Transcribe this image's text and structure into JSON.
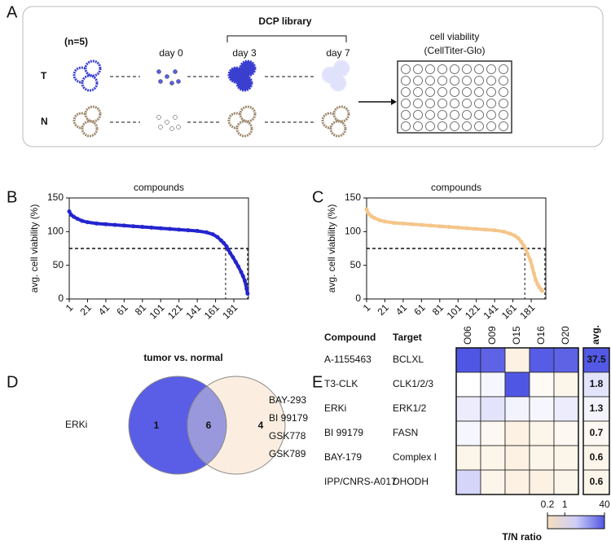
{
  "panel_labels": [
    "A",
    "B",
    "C",
    "D",
    "E"
  ],
  "panel_a": {
    "header": "DCP library",
    "n": "(n=5)",
    "rows": [
      "T",
      "N"
    ],
    "days": [
      "day 0",
      "day 3",
      "day 7"
    ],
    "readout": [
      "cell viability",
      "(CellTiter-Glo)"
    ]
  },
  "chart_data": [
    {
      "type": "line",
      "title": "compounds",
      "y_label": "avg. cell viability (%)",
      "color": "#2424cf",
      "x": [
        1,
        3,
        6,
        10,
        15,
        21,
        31,
        41,
        51,
        61,
        71,
        81,
        91,
        101,
        111,
        121,
        131,
        141,
        151,
        158,
        163,
        167,
        170,
        173,
        175,
        177,
        180,
        183,
        186,
        189,
        191,
        193,
        195,
        196
      ],
      "values": [
        130,
        125,
        122,
        119,
        116,
        114,
        112,
        111,
        110,
        109,
        108,
        107,
        106,
        105,
        104,
        103,
        102,
        101,
        99,
        96,
        92,
        87,
        83,
        78,
        73,
        68,
        62,
        55,
        48,
        40,
        34,
        27,
        15,
        8
      ],
      "xlim": [
        1,
        197
      ],
      "ylim": [
        0,
        150
      ],
      "xticks": [
        1,
        21,
        41,
        61,
        81,
        101,
        121,
        141,
        161,
        181
      ],
      "yticks": [
        0,
        50,
        100,
        150
      ],
      "hline": 75,
      "vlines": [
        172,
        196
      ]
    },
    {
      "type": "line",
      "title": "compounds",
      "y_label": "avg. cell viability (%)",
      "color": "#f5c58a",
      "x": [
        1,
        3,
        6,
        10,
        15,
        21,
        31,
        41,
        51,
        61,
        71,
        81,
        91,
        101,
        111,
        121,
        131,
        141,
        151,
        158,
        163,
        167,
        170,
        173,
        175,
        177,
        180,
        182,
        184,
        186,
        188,
        190,
        192,
        193
      ],
      "values": [
        133,
        127,
        123,
        120,
        117,
        115,
        113,
        112,
        111,
        110,
        109,
        108,
        107,
        106,
        105,
        104,
        103,
        102,
        100,
        97,
        94,
        90,
        85,
        79,
        74,
        67,
        58,
        48,
        38,
        28,
        22,
        17,
        14,
        12
      ],
      "xlim": [
        1,
        197
      ],
      "ylim": [
        0,
        150
      ],
      "xticks": [
        1,
        21,
        41,
        61,
        81,
        101,
        121,
        141,
        161,
        181
      ],
      "yticks": [
        0,
        50,
        100,
        150
      ],
      "hline": 75,
      "vlines": [
        174,
        196
      ]
    }
  ],
  "venn": {
    "title": "tumor vs. normal",
    "left_label": "ERKi",
    "right_labels": [
      "BAY-293",
      "BI 99179",
      "GSK778",
      "GSK789"
    ],
    "counts": [
      1,
      6,
      4
    ]
  },
  "heatmap": {
    "headers": [
      "Compound",
      "Target"
    ],
    "columns": [
      "O06",
      "O09",
      "O15",
      "O16",
      "O20"
    ],
    "avg_label": "avg.",
    "rows": [
      {
        "compound": "A-1155463",
        "target": "BCLXL",
        "values": [
          40,
          30,
          0.5,
          35,
          30
        ],
        "avg": 37.5
      },
      {
        "compound": "T3-CLK",
        "target": "CLK1/2/3",
        "values": [
          1,
          1.2,
          40,
          0.8,
          0.6
        ],
        "avg": 1.8
      },
      {
        "compound": "ERKi",
        "target": "ERK1/2",
        "values": [
          1.5,
          1.8,
          1.3,
          1.2,
          1.5
        ],
        "avg": 1.3
      },
      {
        "compound": "BI 99179",
        "target": "FASN",
        "values": [
          1.2,
          0.7,
          0.5,
          0.6,
          0.7
        ],
        "avg": 0.7
      },
      {
        "compound": "BAY-179",
        "target": "Complex I",
        "values": [
          0.6,
          0.6,
          0.5,
          0.6,
          0.6
        ],
        "avg": 0.6
      },
      {
        "compound": "IPP/CNRS-A017",
        "target": "DHODH",
        "values": [
          2.5,
          0.6,
          0.5,
          0.5,
          0.6
        ],
        "avg": 0.6
      }
    ],
    "colorbar": {
      "ticks": [
        0.2,
        1,
        40
      ],
      "label": "T/N ratio"
    }
  }
}
